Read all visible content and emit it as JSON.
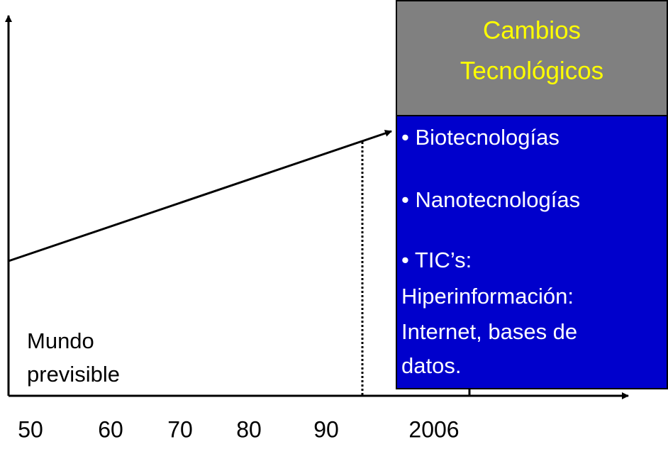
{
  "box": {
    "title": [
      "Cambios",
      "Tecnológicos"
    ],
    "items": [
      [
        "• Biotecnologías"
      ],
      [
        "• Nanotecnologías"
      ],
      [
        "• TIC’s:",
        "Hiperinformación:",
        "Internet, bases de",
        "datos."
      ]
    ]
  },
  "label": [
    "Mundo",
    "previsible"
  ],
  "axis": {
    "labels": [
      "50",
      "60",
      "70",
      "80",
      "90",
      "2006"
    ]
  }
}
